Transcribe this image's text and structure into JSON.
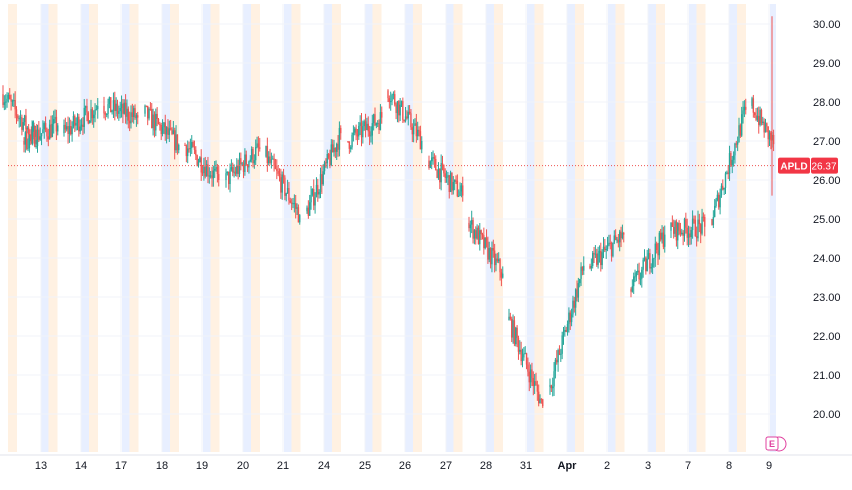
{
  "chart_data": {
    "type": "candlestick",
    "symbol": "APLD",
    "last_price": "26.37",
    "y_ticks": [
      "20.00",
      "21.00",
      "22.00",
      "23.00",
      "24.00",
      "25.00",
      "26.00",
      "27.00",
      "28.00",
      "29.00",
      "30.00"
    ],
    "ylim": [
      19.2,
      30.45
    ],
    "x_ticks": [
      "13",
      "14",
      "17",
      "18",
      "19",
      "20",
      "21",
      "24",
      "25",
      "26",
      "27",
      "28",
      "31",
      "Apr",
      "2",
      "3",
      "7",
      "8",
      "9"
    ],
    "sessions": [
      "pre-market",
      "after-hours"
    ],
    "grid": true,
    "price_line": 26.37,
    "event_marker": "E",
    "colors": {
      "up": "#26a69a",
      "down": "#ef5350",
      "premarket_band": "#fff1e2",
      "afterhours_band": "#e8efff",
      "price_line": "#ef5350",
      "price_label_bg": "#f23645",
      "axis_text": "#131722",
      "grid": "#f0f3fa",
      "event_icon": "#e0409f"
    },
    "day_closes": [
      {
        "day": "12",
        "open": 28.2,
        "close": 27.0
      },
      {
        "day": "13",
        "open": 27.0,
        "close": 27.4
      },
      {
        "day": "14",
        "open": 27.2,
        "close": 27.9
      },
      {
        "day": "17",
        "open": 27.9,
        "close": 27.6
      },
      {
        "day": "18",
        "open": 27.7,
        "close": 26.9
      },
      {
        "day": "19",
        "open": 26.9,
        "close": 26.0
      },
      {
        "day": "20",
        "open": 26.0,
        "close": 26.8
      },
      {
        "day": "21",
        "open": 26.6,
        "close": 25.1
      },
      {
        "day": "24",
        "open": 25.2,
        "close": 27.2
      },
      {
        "day": "25",
        "open": 27.0,
        "close": 27.6
      },
      {
        "day": "26",
        "open": 28.3,
        "close": 27.0
      },
      {
        "day": "27",
        "open": 26.5,
        "close": 25.6
      },
      {
        "day": "28",
        "open": 24.9,
        "close": 23.6
      },
      {
        "day": "31",
        "open": 22.4,
        "close": 20.2
      },
      {
        "day": "Apr",
        "open": 20.7,
        "close": 23.8
      },
      {
        "day": "2",
        "open": 23.8,
        "close": 24.6
      },
      {
        "day": "3",
        "open": 23.2,
        "close": 24.6
      },
      {
        "day": "7",
        "open": 24.7,
        "close": 24.8
      },
      {
        "day": "8",
        "open": 25.0,
        "close": 27.8
      },
      {
        "day": "9",
        "open": 27.9,
        "close": 26.37
      }
    ]
  }
}
